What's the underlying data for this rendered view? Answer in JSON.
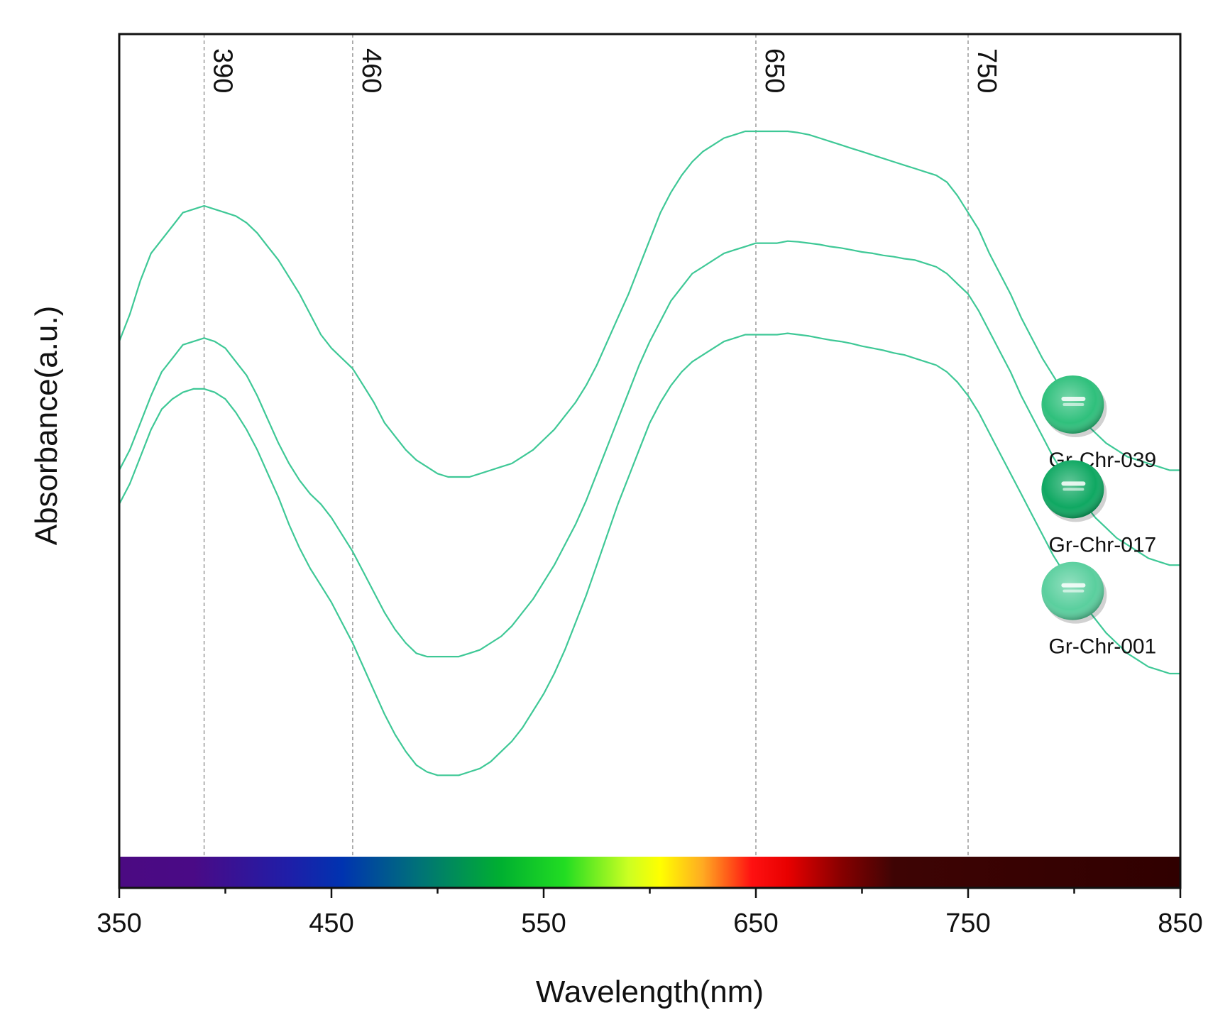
{
  "chart_data": {
    "type": "line",
    "title": "",
    "xlabel": "Wavelength(nm)",
    "ylabel": "Absorbance(a.u.)",
    "xlim": [
      350,
      850
    ],
    "x_ticks": [
      350,
      450,
      550,
      650,
      750,
      850
    ],
    "ylim": [
      0,
      1
    ],
    "y_ticks_shown": false,
    "grid": false,
    "reference_lines": [
      {
        "x": 390,
        "label": "390"
      },
      {
        "x": 460,
        "label": "460"
      },
      {
        "x": 650,
        "label": "650"
      },
      {
        "x": 750,
        "label": "750"
      }
    ],
    "spectrum_bar": {
      "x_range": [
        350,
        850
      ],
      "stops": [
        {
          "x": 350,
          "color": "#4b0a82"
        },
        {
          "x": 385,
          "color": "#4a0a86"
        },
        {
          "x": 430,
          "color": "#1f1ea8"
        },
        {
          "x": 455,
          "color": "#0033b0"
        },
        {
          "x": 490,
          "color": "#00707a"
        },
        {
          "x": 530,
          "color": "#00b030"
        },
        {
          "x": 560,
          "color": "#22dd22"
        },
        {
          "x": 590,
          "color": "#ccff22"
        },
        {
          "x": 605,
          "color": "#ffff00"
        },
        {
          "x": 625,
          "color": "#ffaa22"
        },
        {
          "x": 648,
          "color": "#ff1111"
        },
        {
          "x": 665,
          "color": "#e80000"
        },
        {
          "x": 690,
          "color": "#880000"
        },
        {
          "x": 715,
          "color": "#3e0404"
        },
        {
          "x": 850,
          "color": "#300000"
        }
      ]
    },
    "series": [
      {
        "name": "Gr-Chr-039",
        "color": "#3ec896",
        "gem_color": "#2fc07c",
        "x": [
          350,
          355,
          360,
          365,
          370,
          375,
          380,
          385,
          390,
          395,
          400,
          405,
          410,
          415,
          420,
          425,
          430,
          435,
          440,
          445,
          450,
          455,
          460,
          465,
          470,
          475,
          480,
          485,
          490,
          495,
          500,
          505,
          510,
          515,
          520,
          525,
          530,
          535,
          540,
          545,
          550,
          555,
          560,
          565,
          570,
          575,
          580,
          585,
          590,
          595,
          600,
          605,
          610,
          615,
          620,
          625,
          630,
          635,
          640,
          645,
          650,
          655,
          660,
          665,
          670,
          675,
          680,
          685,
          690,
          695,
          700,
          705,
          710,
          715,
          720,
          725,
          730,
          735,
          740,
          745,
          750,
          755,
          760,
          765,
          770,
          775,
          780,
          785,
          790,
          795,
          800,
          805,
          810,
          815,
          820,
          825,
          830,
          835,
          840,
          845,
          850
        ],
        "y": [
          0.69,
          0.73,
          0.78,
          0.82,
          0.84,
          0.86,
          0.88,
          0.885,
          0.89,
          0.885,
          0.88,
          0.875,
          0.865,
          0.85,
          0.83,
          0.81,
          0.785,
          0.76,
          0.73,
          0.7,
          0.68,
          0.665,
          0.65,
          0.625,
          0.6,
          0.57,
          0.55,
          0.53,
          0.515,
          0.505,
          0.495,
          0.49,
          0.49,
          0.49,
          0.495,
          0.5,
          0.505,
          0.51,
          0.52,
          0.53,
          0.545,
          0.56,
          0.58,
          0.6,
          0.625,
          0.655,
          0.69,
          0.725,
          0.76,
          0.8,
          0.84,
          0.88,
          0.91,
          0.935,
          0.955,
          0.97,
          0.98,
          0.99,
          0.995,
          1.0,
          1.0,
          1.0,
          1.0,
          1.0,
          0.998,
          0.995,
          0.99,
          0.985,
          0.98,
          0.975,
          0.97,
          0.965,
          0.96,
          0.955,
          0.95,
          0.945,
          0.94,
          0.935,
          0.925,
          0.905,
          0.88,
          0.855,
          0.82,
          0.79,
          0.76,
          0.725,
          0.695,
          0.665,
          0.64,
          0.615,
          0.59,
          0.57,
          0.555,
          0.54,
          0.53,
          0.52,
          0.515,
          0.51,
          0.505,
          0.5,
          0.5
        ]
      },
      {
        "name": "Gr-Chr-017",
        "color": "#3ec896",
        "gem_color": "#0fa862",
        "x": [
          350,
          355,
          360,
          365,
          370,
          375,
          380,
          385,
          390,
          395,
          400,
          405,
          410,
          415,
          420,
          425,
          430,
          435,
          440,
          445,
          450,
          455,
          460,
          465,
          470,
          475,
          480,
          485,
          490,
          495,
          500,
          505,
          510,
          515,
          520,
          525,
          530,
          535,
          540,
          545,
          550,
          555,
          560,
          565,
          570,
          575,
          580,
          585,
          590,
          595,
          600,
          605,
          610,
          615,
          620,
          625,
          630,
          635,
          640,
          645,
          650,
          655,
          660,
          665,
          670,
          675,
          680,
          685,
          690,
          695,
          700,
          705,
          710,
          715,
          720,
          725,
          730,
          735,
          740,
          745,
          750,
          755,
          760,
          765,
          770,
          775,
          780,
          785,
          790,
          795,
          800,
          805,
          810,
          815,
          820,
          825,
          830,
          835,
          840,
          845,
          850
        ],
        "y": [
          0.5,
          0.53,
          0.57,
          0.61,
          0.645,
          0.665,
          0.685,
          0.69,
          0.695,
          0.69,
          0.68,
          0.66,
          0.64,
          0.61,
          0.575,
          0.54,
          0.51,
          0.485,
          0.465,
          0.45,
          0.43,
          0.405,
          0.38,
          0.35,
          0.32,
          0.29,
          0.265,
          0.245,
          0.23,
          0.225,
          0.225,
          0.225,
          0.225,
          0.23,
          0.235,
          0.245,
          0.255,
          0.27,
          0.29,
          0.31,
          0.335,
          0.36,
          0.39,
          0.42,
          0.455,
          0.495,
          0.535,
          0.575,
          0.615,
          0.655,
          0.69,
          0.72,
          0.75,
          0.77,
          0.79,
          0.8,
          0.81,
          0.82,
          0.825,
          0.83,
          0.835,
          0.835,
          0.835,
          0.838,
          0.837,
          0.835,
          0.833,
          0.83,
          0.828,
          0.825,
          0.822,
          0.82,
          0.817,
          0.815,
          0.812,
          0.81,
          0.805,
          0.8,
          0.79,
          0.775,
          0.76,
          0.735,
          0.705,
          0.675,
          0.645,
          0.61,
          0.58,
          0.55,
          0.52,
          0.495,
          0.47,
          0.45,
          0.43,
          0.415,
          0.4,
          0.39,
          0.38,
          0.37,
          0.365,
          0.36,
          0.36
        ]
      },
      {
        "name": "Gr-Chr-001",
        "color": "#3ec896",
        "gem_color": "#5acf9e",
        "x": [
          350,
          355,
          360,
          365,
          370,
          375,
          380,
          385,
          390,
          395,
          400,
          405,
          410,
          415,
          420,
          425,
          430,
          435,
          440,
          445,
          450,
          455,
          460,
          465,
          470,
          475,
          480,
          485,
          490,
          495,
          500,
          505,
          510,
          515,
          520,
          525,
          530,
          535,
          540,
          545,
          550,
          555,
          560,
          565,
          570,
          575,
          580,
          585,
          590,
          595,
          600,
          605,
          610,
          615,
          620,
          625,
          630,
          635,
          640,
          645,
          650,
          655,
          660,
          665,
          670,
          675,
          680,
          685,
          690,
          695,
          700,
          705,
          710,
          715,
          720,
          725,
          730,
          735,
          740,
          745,
          750,
          755,
          760,
          765,
          770,
          775,
          780,
          785,
          790,
          795,
          800,
          805,
          810,
          815,
          820,
          825,
          830,
          835,
          840,
          845,
          850
        ],
        "y": [
          0.45,
          0.48,
          0.52,
          0.56,
          0.59,
          0.605,
          0.615,
          0.62,
          0.62,
          0.615,
          0.605,
          0.585,
          0.56,
          0.53,
          0.495,
          0.46,
          0.42,
          0.385,
          0.355,
          0.33,
          0.305,
          0.275,
          0.245,
          0.21,
          0.175,
          0.14,
          0.11,
          0.085,
          0.065,
          0.055,
          0.05,
          0.05,
          0.05,
          0.055,
          0.06,
          0.07,
          0.085,
          0.1,
          0.12,
          0.145,
          0.17,
          0.2,
          0.235,
          0.275,
          0.315,
          0.36,
          0.405,
          0.45,
          0.49,
          0.53,
          0.57,
          0.6,
          0.625,
          0.645,
          0.66,
          0.67,
          0.68,
          0.69,
          0.695,
          0.7,
          0.7,
          0.7,
          0.7,
          0.702,
          0.7,
          0.698,
          0.695,
          0.692,
          0.69,
          0.687,
          0.683,
          0.68,
          0.677,
          0.673,
          0.67,
          0.665,
          0.66,
          0.655,
          0.645,
          0.63,
          0.61,
          0.585,
          0.555,
          0.525,
          0.495,
          0.465,
          0.435,
          0.405,
          0.375,
          0.35,
          0.325,
          0.3,
          0.28,
          0.26,
          0.245,
          0.23,
          0.22,
          0.21,
          0.205,
          0.2,
          0.2
        ]
      }
    ]
  }
}
